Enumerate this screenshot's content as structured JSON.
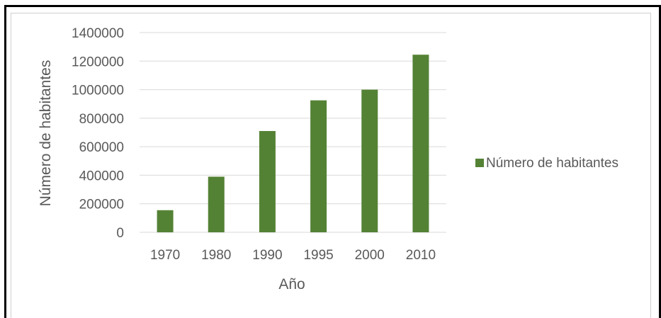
{
  "chart_data": {
    "type": "bar",
    "categories": [
      "1970",
      "1980",
      "1990",
      "1995",
      "2000",
      "2010"
    ],
    "series": [
      {
        "name": "Número de habitantes",
        "values": [
          155000,
          390000,
          710000,
          925000,
          1000000,
          1245000
        ],
        "color": "#548235"
      }
    ],
    "xlabel": "Año",
    "ylabel": "Número de habitantes",
    "ylim": [
      0,
      1400000
    ],
    "yticks": [
      0,
      200000,
      400000,
      600000,
      800000,
      1000000,
      1200000,
      1400000
    ],
    "grid": true,
    "legend_position": "right"
  }
}
